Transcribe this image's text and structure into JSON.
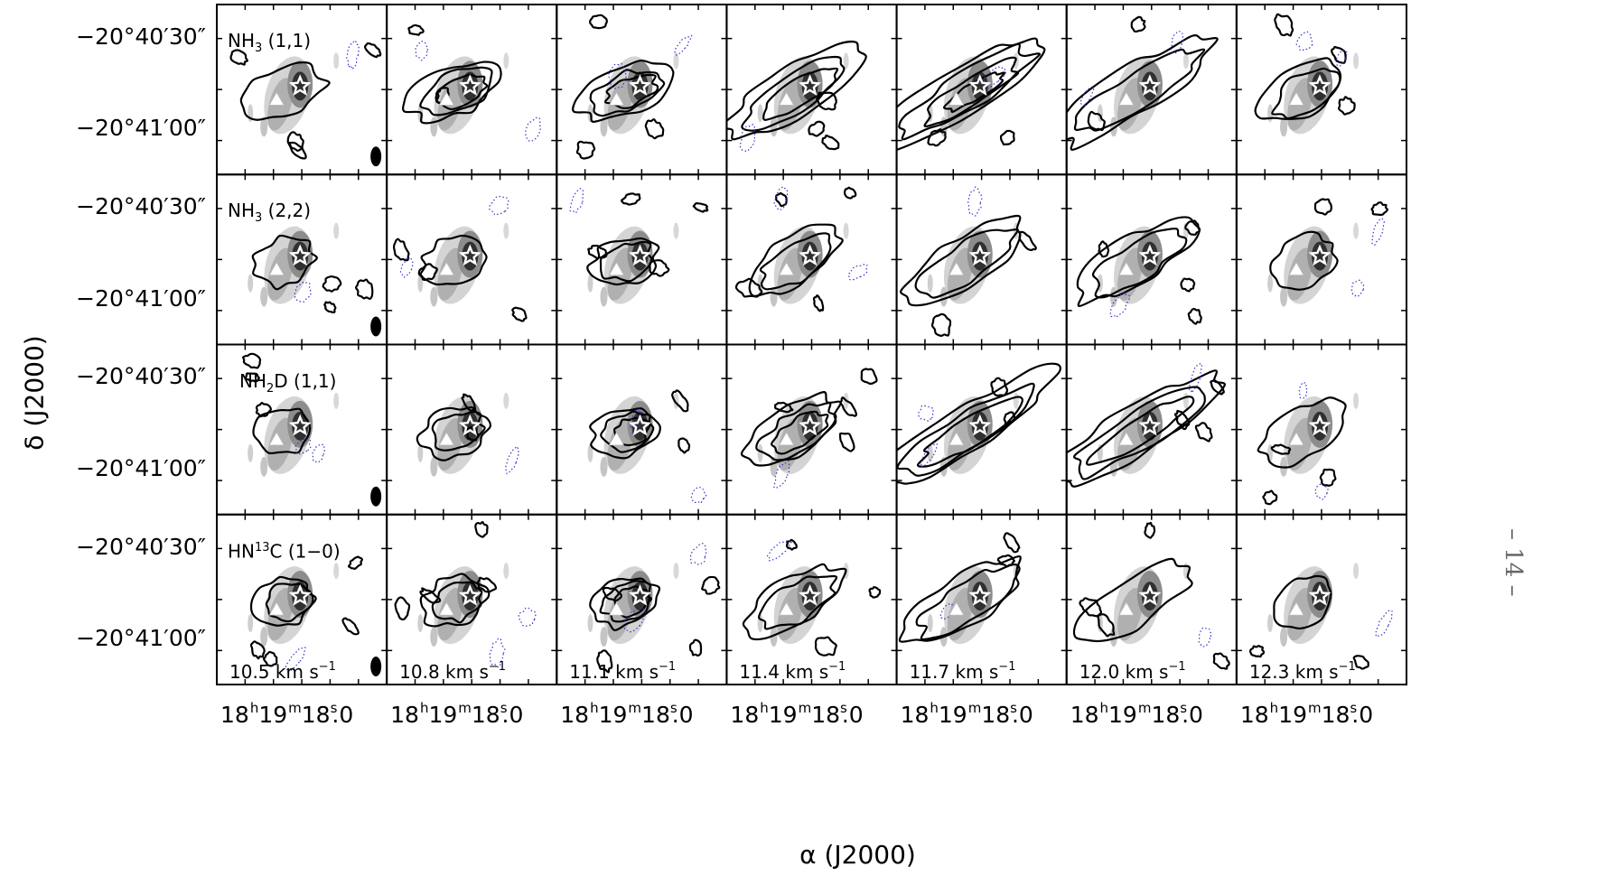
{
  "figure": {
    "x_axis_label": "α (J2000)",
    "y_axis_label": "δ (J2000)",
    "y_ticks": [
      "−20°40′30″",
      "−20°41′00″"
    ],
    "x_tick": {
      "h": "18",
      "m": "19",
      "s": "18.0"
    },
    "rows": [
      {
        "label": "NH3 (1,1)",
        "mol": "NH",
        "sub": "3",
        "sup": "",
        "tail": " (1,1)"
      },
      {
        "label": "NH3 (2,2)",
        "mol": "NH",
        "sub": "3",
        "sup": "",
        "tail": " (2,2)"
      },
      {
        "label": "NH2D (1,1)",
        "mol": "NH",
        "sub": "2",
        "sup": "",
        "tail": "D (1,1)"
      },
      {
        "label": "HN13C (1−0)",
        "mol": "HN",
        "sub": "",
        "sup": "13",
        "tail": "C (1−0)"
      }
    ],
    "velocities": [
      "10.5",
      "10.8",
      "11.1",
      "11.4",
      "11.7",
      "12.0",
      "12.3"
    ],
    "velocity_unit": "km s",
    "velocity_unit_exp": "−1",
    "page_number": "– 14 –"
  },
  "colors": {
    "contour": "#000000",
    "negative_contour": "#3333cc",
    "grayscale_peak": "#303030",
    "background": "#ffffff"
  },
  "markers": {
    "source": "white star",
    "secondary": "white triangle",
    "beam": "black ellipse"
  }
}
